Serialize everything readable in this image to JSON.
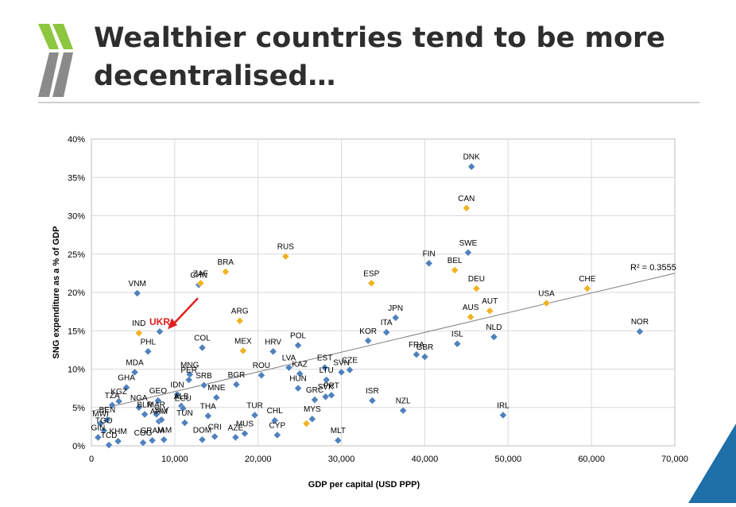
{
  "slide": {
    "title_line1": "Wealthier countries tend to be more",
    "title_line2": "decentralised…"
  },
  "colors": {
    "accent_green": "#8dc63f",
    "logo_grey": "#7f7f7f",
    "corner_blue": "#1f6fa8"
  },
  "chart_data": {
    "type": "scatter",
    "xlabel": "GDP per capital (USD PPP)",
    "ylabel": "SNG expenditure as a % of GDP",
    "xlim": [
      0,
      70000
    ],
    "ylim": [
      0,
      40
    ],
    "x_ticks": [
      "0",
      "10,000",
      "20,000",
      "30,000",
      "40,000",
      "50,000",
      "60,000",
      "70,000"
    ],
    "y_ticks": [
      "0%",
      "5%",
      "10%",
      "15%",
      "20%",
      "25%",
      "30%",
      "35%",
      "40%"
    ],
    "grid": true,
    "legend": "none",
    "trendline": {
      "label": "R² = 0.3555",
      "x": [
        0,
        70000
      ],
      "y": [
        4.5,
        22.5
      ]
    },
    "series": [
      {
        "color": "#4f81bd",
        "marker": "diamond",
        "points": [
          {
            "label": "DNK",
            "x": 45600,
            "y": 36.4
          },
          {
            "label": "SWE",
            "x": 45200,
            "y": 25.2
          },
          {
            "label": "FIN",
            "x": 40500,
            "y": 23.8
          },
          {
            "label": "VNM",
            "x": 5500,
            "y": 19.9
          },
          {
            "label": "CHN",
            "x": 12900,
            "y": 21.0
          },
          {
            "label": "UKR",
            "x": 8200,
            "y": 14.9
          },
          {
            "label": "PHL",
            "x": 6800,
            "y": 12.3
          },
          {
            "label": "JPN",
            "x": 36500,
            "y": 16.7
          },
          {
            "label": "ITA",
            "x": 35400,
            "y": 14.8
          },
          {
            "label": "KOR",
            "x": 33200,
            "y": 13.7
          },
          {
            "label": "ISL",
            "x": 43900,
            "y": 13.3
          },
          {
            "label": "NLD",
            "x": 48300,
            "y": 14.2
          },
          {
            "label": "NOR",
            "x": 65800,
            "y": 14.9
          },
          {
            "label": "COL",
            "x": 13300,
            "y": 12.8
          },
          {
            "label": "HRV",
            "x": 21800,
            "y": 12.3
          },
          {
            "label": "POL",
            "x": 24800,
            "y": 13.1
          },
          {
            "label": "FRA",
            "x": 39000,
            "y": 11.9
          },
          {
            "label": "GBR",
            "x": 40000,
            "y": 11.6
          },
          {
            "label": "MDA",
            "x": 5200,
            "y": 9.6
          },
          {
            "label": "MNG",
            "x": 11800,
            "y": 9.3
          },
          {
            "label": "PER",
            "x": 11700,
            "y": 8.6
          },
          {
            "label": "SRB",
            "x": 13500,
            "y": 7.9
          },
          {
            "label": "BGR",
            "x": 17400,
            "y": 8.0
          },
          {
            "label": "ROU",
            "x": 20400,
            "y": 9.2
          },
          {
            "label": "LVA",
            "x": 23700,
            "y": 10.2
          },
          {
            "label": "KAZ",
            "x": 25000,
            "y": 9.4
          },
          {
            "label": "HUN",
            "x": 24800,
            "y": 7.5
          },
          {
            "label": "EST",
            "x": 28000,
            "y": 10.2
          },
          {
            "label": "LTU",
            "x": 28200,
            "y": 8.6
          },
          {
            "label": "SVN",
            "x": 30000,
            "y": 9.6
          },
          {
            "label": "CZE",
            "x": 31000,
            "y": 9.9
          },
          {
            "label": "SVK",
            "x": 28100,
            "y": 6.4
          },
          {
            "label": "PRT",
            "x": 28800,
            "y": 6.6
          },
          {
            "label": "GHA",
            "x": 4200,
            "y": 7.6
          },
          {
            "label": "IDN",
            "x": 10300,
            "y": 6.7
          },
          {
            "label": "MNE",
            "x": 15000,
            "y": 6.3
          },
          {
            "label": "GEO",
            "x": 8000,
            "y": 5.9
          },
          {
            "label": "ALB",
            "x": 10800,
            "y": 5.2
          },
          {
            "label": "ECU",
            "x": 11000,
            "y": 4.9
          },
          {
            "label": "THA",
            "x": 14000,
            "y": 3.9
          },
          {
            "label": "TUR",
            "x": 19600,
            "y": 4.0
          },
          {
            "label": "CHL",
            "x": 22000,
            "y": 3.3
          },
          {
            "label": "MYS",
            "x": 26500,
            "y": 3.5
          },
          {
            "label": "GRC",
            "x": 26800,
            "y": 6.0
          },
          {
            "label": "ISR",
            "x": 33700,
            "y": 5.9
          },
          {
            "label": "NZL",
            "x": 37400,
            "y": 4.6
          },
          {
            "label": "IRL",
            "x": 49400,
            "y": 4.0
          },
          {
            "label": "KGZ",
            "x": 3300,
            "y": 5.8
          },
          {
            "label": "TZA",
            "x": 2500,
            "y": 5.3
          },
          {
            "label": "NGA",
            "x": 5700,
            "y": 5.0
          },
          {
            "label": "MAR",
            "x": 7800,
            "y": 4.1
          },
          {
            "label": "BLR",
            "x": 6400,
            "y": 4.1
          },
          {
            "label": "TUN",
            "x": 11200,
            "y": 3.0
          },
          {
            "label": "ARM",
            "x": 8100,
            "y": 3.2
          },
          {
            "label": "SLV",
            "x": 8400,
            "y": 3.4
          },
          {
            "label": "CRI",
            "x": 14800,
            "y": 1.2
          },
          {
            "label": "DOM",
            "x": 13300,
            "y": 0.8
          },
          {
            "label": "AZE",
            "x": 17300,
            "y": 1.1
          },
          {
            "label": "MUS",
            "x": 18400,
            "y": 1.6
          },
          {
            "label": "CYP",
            "x": 22300,
            "y": 1.4
          },
          {
            "label": "MLT",
            "x": 29600,
            "y": 0.7
          },
          {
            "label": "KHM",
            "x": 3200,
            "y": 0.6
          },
          {
            "label": "COG",
            "x": 6200,
            "y": 0.4
          },
          {
            "label": "GIN",
            "x": 800,
            "y": 1.1
          },
          {
            "label": "TCD",
            "x": 2100,
            "y": 0.1
          },
          {
            "label": "MWI",
            "x": 1100,
            "y": 2.9
          },
          {
            "label": "BEN",
            "x": 1900,
            "y": 3.4
          },
          {
            "label": "TGO",
            "x": 1500,
            "y": 2.0
          },
          {
            "label": "GRAM",
            "x": 7300,
            "y": 0.7
          },
          {
            "label": "JAM",
            "x": 8700,
            "y": 0.8
          }
        ]
      },
      {
        "color": "#f0b323",
        "marker": "diamond",
        "points": [
          {
            "label": "CAN",
            "x": 45000,
            "y": 31.0
          },
          {
            "label": "RUS",
            "x": 23300,
            "y": 24.7
          },
          {
            "label": "BRA",
            "x": 16100,
            "y": 22.7
          },
          {
            "label": "ZAF",
            "x": 13100,
            "y": 21.2
          },
          {
            "label": "ESP",
            "x": 33600,
            "y": 21.2
          },
          {
            "label": "BEL",
            "x": 43600,
            "y": 22.9
          },
          {
            "label": "DEU",
            "x": 46200,
            "y": 20.5
          },
          {
            "label": "CHE",
            "x": 59500,
            "y": 20.5
          },
          {
            "label": "USA",
            "x": 54600,
            "y": 18.6
          },
          {
            "label": "AUT",
            "x": 47800,
            "y": 17.6
          },
          {
            "label": "AUS",
            "x": 45500,
            "y": 16.8
          },
          {
            "label": "ARG",
            "x": 17800,
            "y": 16.3
          },
          {
            "label": "IND",
            "x": 5700,
            "y": 14.7
          },
          {
            "label": "MEX",
            "x": 18200,
            "y": 12.4
          },
          {
            "label": "MYS2",
            "x": 25800,
            "y": 2.9
          }
        ]
      }
    ],
    "annotation": {
      "label": "UKR",
      "color": "#e02020",
      "x": 8200,
      "y": 14.9
    }
  }
}
